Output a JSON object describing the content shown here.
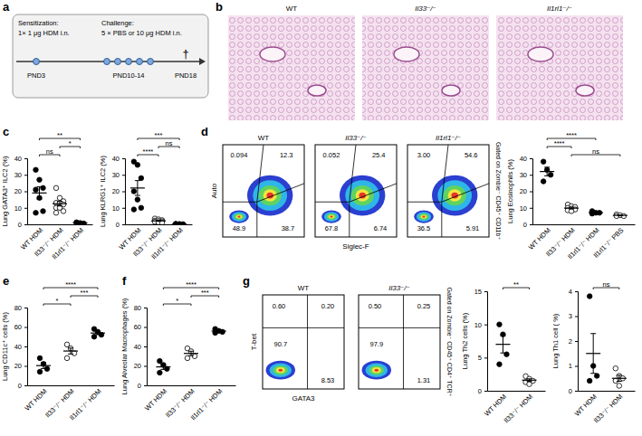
{
  "panel_a": {
    "panel_label": "a",
    "steps": [
      {
        "title": "Sensitization:",
        "detail": "1× 1 μg HDM i.n."
      },
      {
        "title": "Challenge:",
        "detail": "5 × PBS or 10 μg HDM i.n."
      }
    ],
    "timepoints": [
      "PND3",
      "PND10-14",
      "PND18"
    ],
    "endpoint": "†"
  },
  "panel_b": {
    "panel_label": "b",
    "images": [
      "WT",
      "Il33⁻/⁻",
      "Il1rl1⁻/⁻"
    ]
  },
  "flow_d": {
    "panel_label": "d",
    "x_label": "Siglec-F",
    "y_label": "Auto",
    "gate_note": "Gated on Zombie⁻ CD45⁺ CD11b⁺",
    "plots": [
      {
        "title": "WT",
        "gates": [
          0.094,
          12.3,
          48.9,
          38.7
        ]
      },
      {
        "title": "Il33⁻/⁻",
        "gates": [
          0.052,
          25.4,
          67.8,
          6.74
        ]
      },
      {
        "title": "Il1rl1⁻/⁻",
        "gates": [
          {
            "value": 3,
            "label": "3.00"
          },
          54.6,
          36.5,
          5.91
        ]
      }
    ]
  },
  "flow_g": {
    "panel_label": "g",
    "x_label": "GATA3",
    "y_label": "T-bet",
    "gate_note": "Gated on Zombie⁻ CD45⁺ CD4⁺ TCR⁺",
    "plots": [
      {
        "title": "WT",
        "gates": [
          {
            "value": 0.6,
            "label": "0.60"
          },
          {
            "value": 0.2,
            "label": "0.20"
          },
          90.7,
          8.53
        ]
      },
      {
        "title": "Il33⁻/⁻",
        "gates": [
          {
            "value": 0.5,
            "label": "0.50"
          },
          0.25,
          97.9,
          1.31
        ]
      }
    ]
  },
  "chart_data": [
    {
      "type": "dot",
      "panel_label": "c",
      "y_label": "Lung GATA3⁺ ILC2 (%)",
      "categories": [
        "WT HDM",
        "Il33⁻/⁻ HDM",
        "Il1rl1⁻/⁻ HDM"
      ],
      "values": [
        [
          33,
          27,
          22,
          21,
          16,
          8,
          7
        ],
        [
          22,
          16,
          14,
          13,
          13,
          12,
          10,
          10,
          8,
          7
        ],
        [
          1.2,
          0.8,
          0.5,
          1.0
        ]
      ],
      "means": [
        19,
        12.5,
        0.9
      ],
      "errors": [
        3.7,
        1.4,
        0.15
      ],
      "colors": [
        "#000000",
        "#ffffff",
        "#000000"
      ],
      "marker": "circle",
      "ylim": [
        0,
        40
      ],
      "yticks": [
        0,
        10,
        20,
        30,
        40
      ],
      "annotations": [
        {
          "from": 0,
          "to": 1,
          "label": "ns"
        },
        {
          "from": 1,
          "to": 2,
          "label": "*"
        },
        {
          "from": 0,
          "to": 2,
          "label": "**"
        }
      ]
    },
    {
      "type": "dot",
      "y_label": "Lung KLRG1⁺ ILC2 (%)",
      "categories": [
        "WT HDM",
        "Il33⁻/⁻ HDM",
        "Il1rl1⁻/⁻ HDM"
      ],
      "values": [
        [
          38,
          36,
          28,
          20,
          15,
          10,
          9
        ],
        [
          3.5,
          3,
          2.5,
          2.2,
          2,
          1.8,
          1.5,
          1.2,
          1
        ],
        [
          0.3,
          0.2,
          0.1,
          0.2
        ]
      ],
      "means": [
        22,
        2.1,
        0.2
      ],
      "errors": [
        4.5,
        0.3,
        0.04
      ],
      "colors": [
        "#000000",
        "#ffffff",
        "#000000"
      ],
      "marker": "circle",
      "ylim": [
        0,
        40
      ],
      "yticks": [
        0,
        10,
        20,
        30,
        40
      ],
      "annotations": [
        {
          "from": 0,
          "to": 1,
          "label": "****"
        },
        {
          "from": 1,
          "to": 2,
          "label": "ns"
        },
        {
          "from": 0,
          "to": 2,
          "label": "***"
        }
      ]
    },
    {
      "type": "dot",
      "y_label": "Lung Eosinophils (%)",
      "categories": [
        "WT HDM",
        "Il33⁻/⁻ HDM",
        "Il1rl1⁻/⁻ HDM",
        "Il1rl1⁻/⁻ PBS"
      ],
      "values": [
        [
          38,
          33,
          30,
          26
        ],
        [
          12,
          11,
          10.5,
          10,
          9.5,
          9,
          8.5,
          8
        ],
        [
          8,
          7,
          7,
          6.5
        ],
        [
          6,
          5.5,
          5,
          5
        ]
      ],
      "means": [
        32,
        9.8,
        7.1,
        5.4
      ],
      "errors": [
        2.6,
        0.5,
        0.3,
        0.25
      ],
      "colors": [
        "#000000",
        "#ffffff",
        "#000000",
        "#ffffff"
      ],
      "marker": "circle",
      "ylim": [
        0,
        40
      ],
      "yticks": [
        0,
        10,
        20,
        30,
        40
      ],
      "annotations": [
        {
          "from": 1,
          "to": 3,
          "label": "ns"
        },
        {
          "from": 0,
          "to": 1,
          "label": "****"
        },
        {
          "from": 0,
          "to": 2,
          "label": "****"
        }
      ]
    },
    {
      "type": "dot",
      "panel_label": "e",
      "y_label": "Lung CD11c⁺ cells (%)",
      "categories": [
        "WT HDM",
        "Il33⁻/⁻ HDM",
        "Il1rl1⁻/⁻ HDM"
      ],
      "values": [
        [
          28,
          22,
          17,
          14
        ],
        [
          42,
          38,
          33,
          28
        ],
        [
          58,
          55,
          52,
          50
        ]
      ],
      "means": [
        20.3,
        35.3,
        53.8
      ],
      "errors": [
        3,
        3,
        1.7
      ],
      "colors": [
        "#000000",
        "#ffffff",
        "#000000"
      ],
      "marker": "circle",
      "ylim": [
        0,
        80
      ],
      "yticks": [
        0,
        20,
        40,
        60,
        80
      ],
      "annotations": [
        {
          "from": 0,
          "to": 1,
          "label": "*"
        },
        {
          "from": 1,
          "to": 2,
          "label": "***"
        },
        {
          "from": 0,
          "to": 2,
          "label": "****"
        }
      ]
    },
    {
      "type": "dot",
      "panel_label": "f",
      "y_label": "Lung Alveolar Macrophages (%)",
      "categories": [
        "WT HDM",
        "Il33⁻/⁻ HDM",
        "Il1rl1⁻/⁻ HDM"
      ],
      "values": [
        [
          25,
          21,
          17,
          13
        ],
        [
          38,
          35,
          30,
          28
        ],
        [
          58,
          56,
          55,
          54
        ]
      ],
      "means": [
        19,
        32.8,
        55.8
      ],
      "errors": [
        2.6,
        2.3,
        0.9
      ],
      "colors": [
        "#000000",
        "#ffffff",
        "#000000"
      ],
      "marker": "circle",
      "ylim": [
        0,
        80
      ],
      "yticks": [
        0,
        20,
        40,
        60,
        80
      ],
      "annotations": [
        {
          "from": 0,
          "to": 1,
          "label": "*"
        },
        {
          "from": 1,
          "to": 2,
          "label": "***"
        },
        {
          "from": 0,
          "to": 2,
          "label": "****"
        }
      ]
    },
    {
      "type": "dot",
      "y_label": "Lung Th2 cells (%)",
      "categories": [
        "WT HDM",
        "Il33⁻/⁻ HDM"
      ],
      "values": [
        [
          10,
          8.5,
          5.5,
          4
        ],
        [
          2.2,
          1.8,
          1.5,
          1.3,
          1
        ]
      ],
      "means": [
        7,
        1.6
      ],
      "errors": [
        1.3,
        0.2
      ],
      "colors": [
        "#000000",
        "#ffffff"
      ],
      "marker": "circle",
      "ylim": [
        0,
        15
      ],
      "yticks": [
        0,
        5,
        10,
        15
      ],
      "annotations": [
        {
          "from": 0,
          "to": 1,
          "label": "**"
        }
      ]
    },
    {
      "type": "dot",
      "y_label": "Lung Th1 cell ( %)",
      "categories": [
        "WT HDM",
        "Il33⁻/⁻ HDM"
      ],
      "values": [
        [
          3.8,
          1,
          0.6,
          0.4
        ],
        [
          0.9,
          0.6,
          0.5,
          0.4,
          0.2
        ]
      ],
      "means": [
        1.5,
        0.5
      ],
      "errors": [
        0.8,
        0.12
      ],
      "colors": [
        "#000000",
        "#ffffff"
      ],
      "marker": "circle",
      "ylim": [
        0,
        4
      ],
      "yticks": [
        0,
        1,
        2,
        3,
        4
      ],
      "annotations": [
        {
          "from": 0,
          "to": 1,
          "label": "ns"
        }
      ]
    }
  ]
}
